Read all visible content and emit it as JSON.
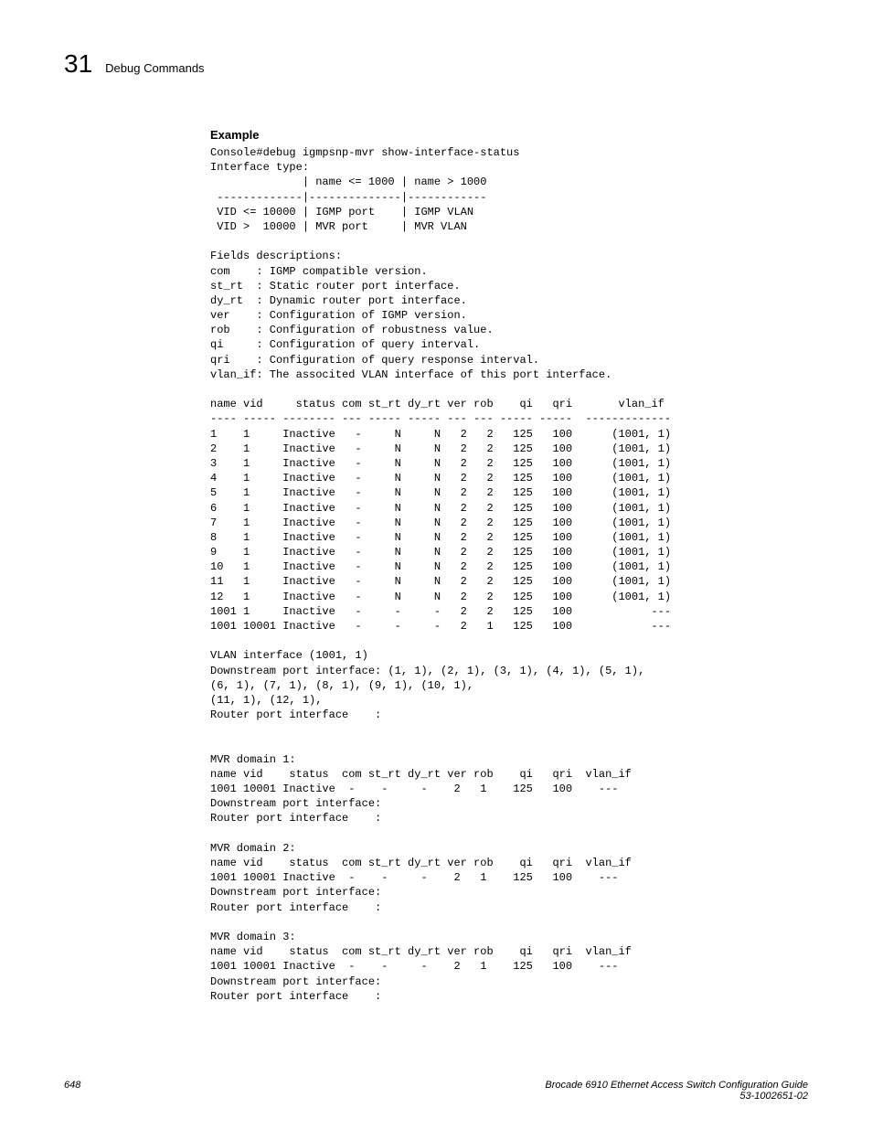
{
  "header": {
    "chapter_number": "31",
    "chapter_title": "Debug Commands"
  },
  "section": {
    "title": "Example"
  },
  "console_output": "Console#debug igmpsnp-mvr show-interface-status\nInterface type:\n              | name <= 1000 | name > 1000\n -------------|--------------|------------\n VID <= 10000 | IGMP port    | IGMP VLAN\n VID >  10000 | MVR port     | MVR VLAN\n\nFields descriptions:\ncom    : IGMP compatible version.\nst_rt  : Static router port interface.\ndy_rt  : Dynamic router port interface.\nver    : Configuration of IGMP version.\nrob    : Configuration of robustness value.\nqi     : Configuration of query interval.\nqri    : Configuration of query response interval.\nvlan_if: The associted VLAN interface of this port interface.\n\nname vid     status com st_rt dy_rt ver rob    qi   qri       vlan_if\n---- ----- -------- --- ----- ----- --- --- ----- -----  -------------\n1    1     Inactive   -     N     N   2   2   125   100      (1001, 1)\n2    1     Inactive   -     N     N   2   2   125   100      (1001, 1)\n3    1     Inactive   -     N     N   2   2   125   100      (1001, 1)\n4    1     Inactive   -     N     N   2   2   125   100      (1001, 1)\n5    1     Inactive   -     N     N   2   2   125   100      (1001, 1)\n6    1     Inactive   -     N     N   2   2   125   100      (1001, 1)\n7    1     Inactive   -     N     N   2   2   125   100      (1001, 1)\n8    1     Inactive   -     N     N   2   2   125   100      (1001, 1)\n9    1     Inactive   -     N     N   2   2   125   100      (1001, 1)\n10   1     Inactive   -     N     N   2   2   125   100      (1001, 1)\n11   1     Inactive   -     N     N   2   2   125   100      (1001, 1)\n12   1     Inactive   -     N     N   2   2   125   100      (1001, 1)\n1001 1     Inactive   -     -     -   2   2   125   100            ---\n1001 10001 Inactive   -     -     -   2   1   125   100            ---\n\nVLAN interface (1001, 1)\nDownstream port interface: (1, 1), (2, 1), (3, 1), (4, 1), (5, 1), \n(6, 1), (7, 1), (8, 1), (9, 1), (10, 1), \n(11, 1), (12, 1), \nRouter port interface    : \n\n\nMVR domain 1:\nname vid    status  com st_rt dy_rt ver rob    qi   qri  vlan_if\n1001 10001 Inactive  -    -     -    2   1    125   100    ---\nDownstream port interface: \nRouter port interface    : \n\nMVR domain 2:\nname vid    status  com st_rt dy_rt ver rob    qi   qri  vlan_if\n1001 10001 Inactive  -    -     -    2   1    125   100    ---\nDownstream port interface: \nRouter port interface    : \n\nMVR domain 3:\nname vid    status  com st_rt dy_rt ver rob    qi   qri  vlan_if\n1001 10001 Inactive  -    -     -    2   1    125   100    ---\nDownstream port interface: \nRouter port interface    : ",
  "footer": {
    "page_number": "648",
    "doc_title_line1": "Brocade 6910 Ethernet Access Switch Configuration Guide",
    "doc_title_line2": "53-1002651-02"
  }
}
